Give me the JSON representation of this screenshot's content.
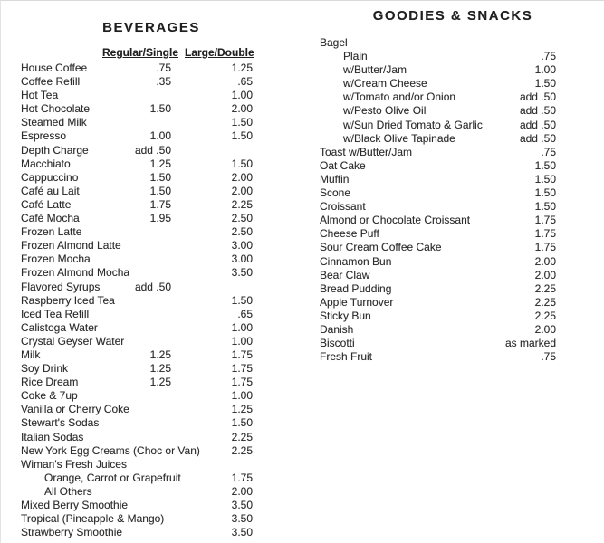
{
  "left_menu": {
    "title": "BEVERAGES",
    "columns": {
      "regular": "Regular/Single",
      "large": "Large/Double"
    },
    "items": [
      {
        "name": "House Coffee",
        "regular": ".75",
        "large": "1.25"
      },
      {
        "name": "Coffee Refill",
        "regular": ".35",
        "large": ".65"
      },
      {
        "name": "Hot Tea",
        "large": "1.00"
      },
      {
        "name": "Hot Chocolate",
        "regular": "1.50",
        "large": "2.00"
      },
      {
        "name": "Steamed Milk",
        "large": "1.50"
      },
      {
        "name": "Espresso",
        "regular": "1.00",
        "large": "1.50"
      },
      {
        "name": "Depth Charge",
        "regular": "add .50"
      },
      {
        "name": "Macchiato",
        "regular": "1.25",
        "large": "1.50"
      },
      {
        "name": "Cappuccino",
        "regular": "1.50",
        "large": "2.00"
      },
      {
        "name": "Café au Lait",
        "regular": "1.50",
        "large": "2.00"
      },
      {
        "name": "Café Latte",
        "regular": "1.75",
        "large": "2.25"
      },
      {
        "name": "Café Mocha",
        "regular": "1.95",
        "large": "2.50"
      },
      {
        "name": "Frozen Latte",
        "large": "2.50"
      },
      {
        "name": "Frozen Almond Latte",
        "large": "3.00"
      },
      {
        "name": "Frozen Mocha",
        "large": "3.00"
      },
      {
        "name": "Frozen Almond Mocha",
        "large": "3.50"
      },
      {
        "name": "Flavored Syrups",
        "regular": "add .50"
      },
      {
        "name": "Raspberry Iced Tea",
        "large": "1.50"
      },
      {
        "name": "Iced Tea Refill",
        "large": ".65"
      },
      {
        "name": "Calistoga Water",
        "large": "1.00"
      },
      {
        "name": "Crystal Geyser Water",
        "large": "1.00"
      },
      {
        "name": "Milk",
        "regular": "1.25",
        "large": "1.75"
      },
      {
        "name": "Soy Drink",
        "regular": "1.25",
        "large": "1.75"
      },
      {
        "name": "Rice Dream",
        "regular": "1.25",
        "large": "1.75"
      },
      {
        "name": "Coke & 7up",
        "large": "1.00"
      },
      {
        "name": "Vanilla or Cherry Coke",
        "large": "1.25"
      },
      {
        "name": "Stewart's Sodas",
        "large": "1.50"
      },
      {
        "name": "Italian Sodas",
        "large": "2.25"
      },
      {
        "name": "New York Egg Creams (Choc or Van)",
        "large": "2.25"
      },
      {
        "name": "Wiman's Fresh Juices"
      },
      {
        "name": "Orange, Carrot or Grapefruit",
        "indent": true,
        "large": "1.75"
      },
      {
        "name": "All Others",
        "indent": true,
        "large": "2.00"
      },
      {
        "name": "Mixed Berry Smoothie",
        "large": "3.50"
      },
      {
        "name": "Tropical (Pineapple & Mango)",
        "large": "3.50"
      },
      {
        "name": "Strawberry Smoothie",
        "large": "3.50"
      }
    ]
  },
  "right_menu": {
    "title": "GOODIES & SNACKS",
    "items": [
      {
        "name": "Bagel"
      },
      {
        "name": "Plain",
        "indent": true,
        "price": ".75"
      },
      {
        "name": "w/Butter/Jam",
        "indent": true,
        "price": "1.00"
      },
      {
        "name": "w/Cream Cheese",
        "indent": true,
        "price": "1.50"
      },
      {
        "name": "w/Tomato and/or Onion",
        "indent": true,
        "price": "add .50"
      },
      {
        "name": "w/Pesto Olive Oil",
        "indent": true,
        "price": "add .50"
      },
      {
        "name": "w/Sun Dried Tomato & Garlic",
        "indent": true,
        "price": "add .50"
      },
      {
        "name": "w/Black Olive Tapinade",
        "indent": true,
        "price": "add .50"
      },
      {
        "name": "Toast w/Butter/Jam",
        "price": ".75"
      },
      {
        "name": "Oat Cake",
        "price": "1.50"
      },
      {
        "name": "Muffin",
        "price": "1.50"
      },
      {
        "name": "Scone",
        "price": "1.50"
      },
      {
        "name": "Croissant",
        "price": "1.50"
      },
      {
        "name": "Almond or Chocolate Croissant",
        "price": "1.75"
      },
      {
        "name": "Cheese Puff",
        "price": "1.75"
      },
      {
        "name": "Sour Cream Coffee Cake",
        "price": "1.75"
      },
      {
        "name": "Cinnamon Bun",
        "price": "2.00"
      },
      {
        "name": "Bear Claw",
        "price": "2.00"
      },
      {
        "name": "Bread Pudding",
        "price": "2.25"
      },
      {
        "name": "Apple Turnover",
        "price": "2.25"
      },
      {
        "name": "Sticky Bun",
        "price": "2.25"
      },
      {
        "name": "Danish",
        "price": "2.00"
      },
      {
        "name": "Biscotti",
        "price": "as marked"
      },
      {
        "name": "Fresh Fruit",
        "price": ".75"
      }
    ]
  },
  "colors": {
    "text": "#2d2d2d",
    "background": "#ffffff"
  }
}
